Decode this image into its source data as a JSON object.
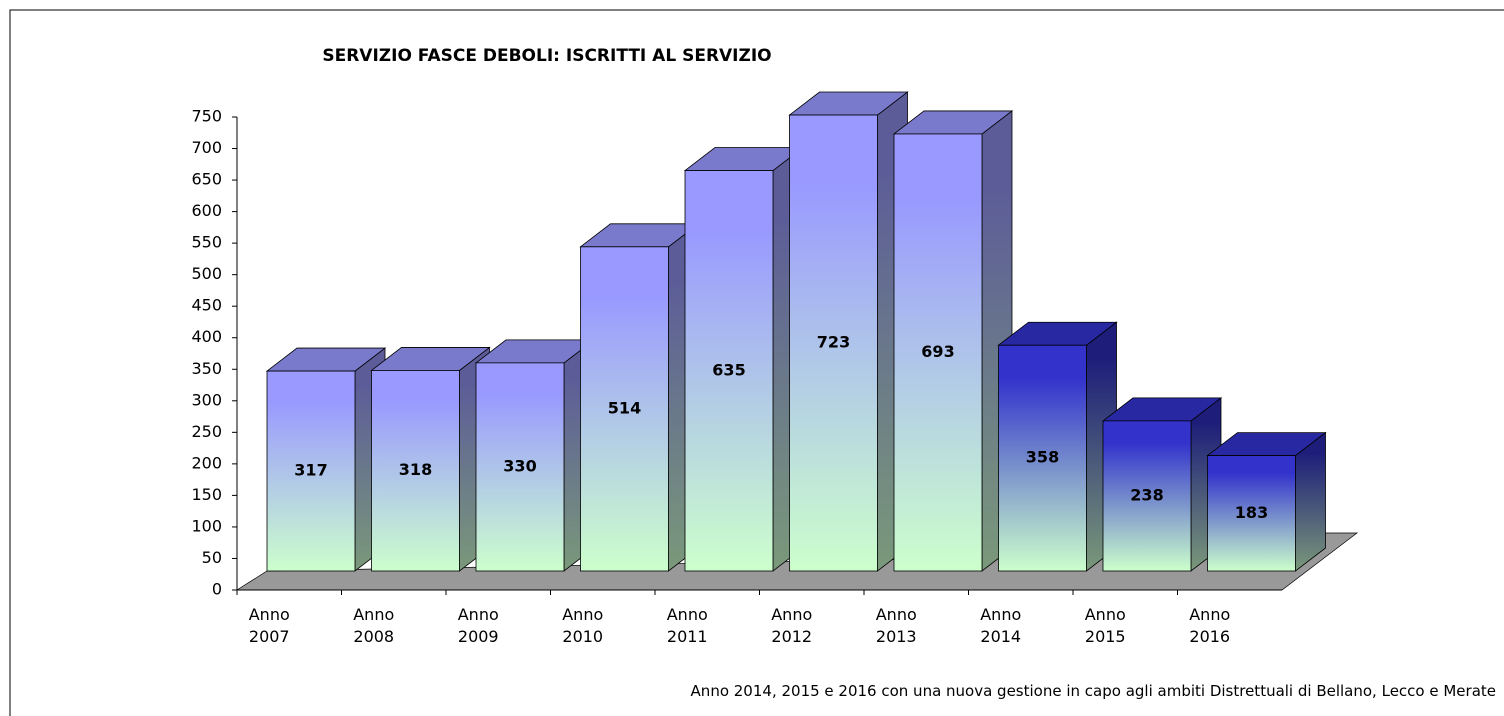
{
  "chart_data": {
    "type": "bar3d",
    "title": "SERVIZIO FASCE DEBOLI: ISCRITTI AL SERVIZIO",
    "categories": [
      "Anno 2007",
      "Anno 2008",
      "Anno 2009",
      "Anno 2010",
      "Anno 2011",
      "Anno 2012",
      "Anno 2013",
      "Anno 2014",
      "Anno 2015",
      "Anno 2016"
    ],
    "values": [
      317,
      318,
      330,
      514,
      635,
      723,
      693,
      358,
      238,
      183
    ],
    "colors": [
      "#9999ff",
      "#9999ff",
      "#9999ff",
      "#9999ff",
      "#9999ff",
      "#9999ff",
      "#9999ff",
      "#3333cc",
      "#3333cc",
      "#3333cc"
    ],
    "gradient_end": "#ccffcc",
    "ylim": [
      0,
      750
    ],
    "yticks": [
      0,
      50,
      100,
      150,
      200,
      250,
      300,
      350,
      400,
      450,
      500,
      550,
      600,
      650,
      700,
      750
    ],
    "annotation": "Anno 2014, 2015 e 2016 con una nuova gestione in capo agli ambiti Distrettuali di Bellano, Lecco e Merate"
  }
}
